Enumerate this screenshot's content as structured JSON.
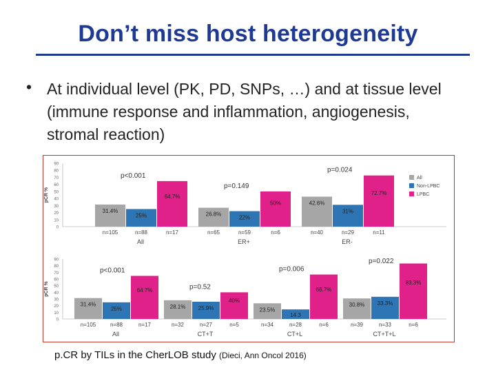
{
  "slide": {
    "title": "Don’t miss host heterogeneity",
    "bullet_symbol": "•",
    "bullet_text": "At individual level (PK, PD, SNPs, …) and at tissue level (immune response and inflammation, angiogenesis, stromal reaction)",
    "caption_main": "p.CR by TILs in the CherLOB study",
    "caption_ref": "(Dieci, Ann Oncol 2016)"
  },
  "colors": {
    "title": "#1f3a93",
    "all": "#a6a6a6",
    "non_lpbc": "#2e75b6",
    "lpbc": "#e0218a"
  },
  "chart_data": [
    {
      "type": "bar",
      "ylabel": "pCR %",
      "ylim": [
        0,
        90
      ],
      "yticks": [
        "0",
        "10",
        "20",
        "30",
        "40",
        "50",
        "60",
        "70",
        "80",
        "90"
      ],
      "legend": [
        "All",
        "Non-LPBC",
        "LPBC"
      ],
      "legend_position": "right",
      "groups": [
        {
          "label": "All",
          "p_value": "p<0.001",
          "values": [
            31.4,
            25,
            64.7
          ],
          "data_labels": [
            "31.4%",
            "25%",
            "64.7%"
          ],
          "n_labels": [
            "n=105",
            "n=88",
            "n=17"
          ]
        },
        {
          "label": "ER+",
          "p_value": "p=0.149",
          "values": [
            26.8,
            22,
            50
          ],
          "data_labels": [
            "26.8%",
            "22%",
            "50%"
          ],
          "n_labels": [
            "n=65",
            "n=59",
            "n=6"
          ]
        },
        {
          "label": "ER-",
          "p_value": "p=0.024",
          "values": [
            42.6,
            31,
            72.7
          ],
          "data_labels": [
            "42.6%",
            "31%",
            "72.7%"
          ],
          "n_labels": [
            "n=40",
            "n=29",
            "n=11"
          ]
        }
      ]
    },
    {
      "type": "bar",
      "ylabel": "pCR %",
      "ylim": [
        0,
        90
      ],
      "yticks": [
        "0",
        "10",
        "20",
        "30",
        "40",
        "50",
        "60",
        "70",
        "80",
        "90"
      ],
      "groups": [
        {
          "label": "All",
          "p_value": "p<0.001",
          "values": [
            31.4,
            25,
            64.7
          ],
          "data_labels": [
            "31.4%",
            "25%",
            "64.7%"
          ],
          "n_labels": [
            "n=105",
            "n=88",
            "n=17"
          ]
        },
        {
          "label": "CT+T",
          "p_value": "p=0.52",
          "values": [
            28.1,
            25.9,
            40
          ],
          "data_labels": [
            "28.1%",
            "25.9%",
            "40%"
          ],
          "n_labels": [
            "n=32",
            "n=27",
            "n=5"
          ]
        },
        {
          "label": "CT+L",
          "p_value": "p=0.006",
          "values": [
            23.5,
            14.3,
            66.7
          ],
          "data_labels": [
            "23.5%",
            "14.3",
            "66.7%"
          ],
          "n_labels": [
            "n=34",
            "n=28",
            "n=6"
          ]
        },
        {
          "label": "CT+T+L",
          "p_value": "p=0.022",
          "values": [
            30.8,
            33.3,
            83.3
          ],
          "data_labels": [
            "30.8%",
            "33.3%",
            "83.3%"
          ],
          "n_labels": [
            "n=39",
            "n=33",
            "n=6"
          ]
        }
      ]
    }
  ]
}
